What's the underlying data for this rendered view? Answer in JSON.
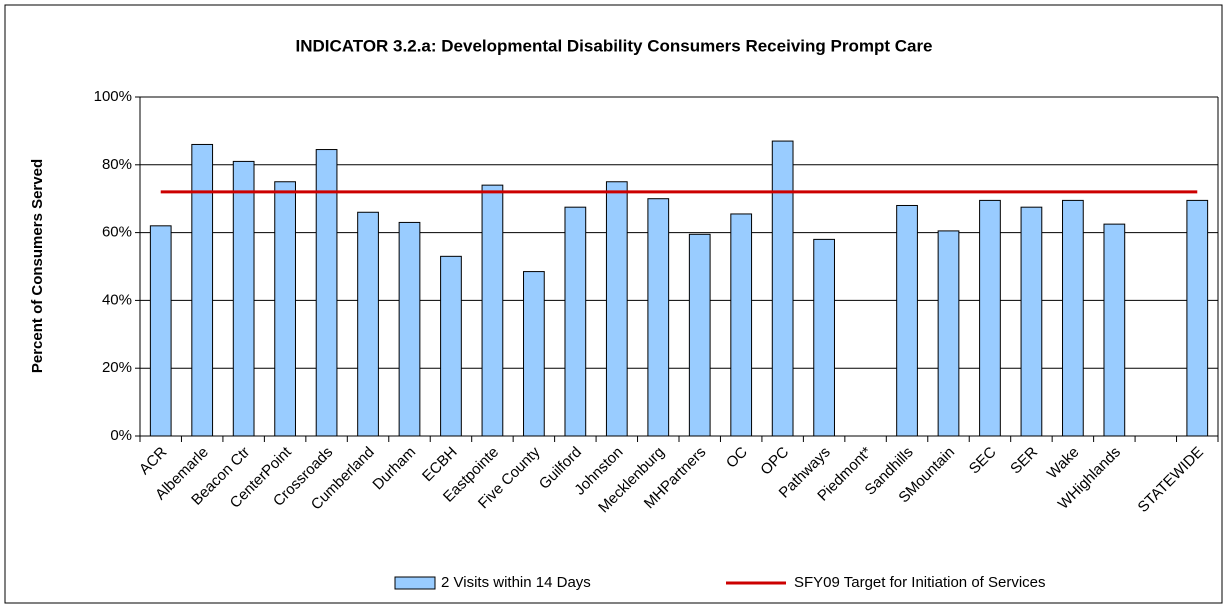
{
  "chart_data": {
    "type": "bar",
    "title": "INDICATOR 3.2.a: Developmental Disability Consumers Receiving Prompt Care",
    "y_label": "Percent of Consumers Served",
    "categories": [
      "ACR",
      "Albemarle",
      "Beacon Ctr",
      "CenterPoint",
      "Crossroads",
      "Cumberland",
      "Durham",
      "ECBH",
      "Eastpointe",
      "Five County",
      "Guilford",
      "Johnston",
      "Mecklenburg",
      "MHPartners",
      "OC",
      "OPC",
      "Pathways",
      "Piedmont*",
      "Sandhills",
      "SMountain",
      "SEC",
      "SER",
      "Wake",
      "WHighlands",
      null,
      "STATEWIDE"
    ],
    "series": [
      {
        "name": "2 Visits within 14 Days",
        "type": "bar",
        "color": "#99ccff",
        "values": [
          62,
          86,
          81,
          75,
          84.5,
          66,
          63,
          53,
          74,
          48.5,
          67.5,
          75,
          70,
          59.5,
          65.5,
          87,
          58,
          null,
          68,
          60.5,
          69.5,
          67.5,
          69.5,
          62.5,
          null,
          69.5
        ]
      },
      {
        "name": "SFY09 Target for Initiation of Services",
        "type": "line",
        "color": "#cc0000",
        "values": [
          72,
          72,
          72,
          72,
          72,
          72,
          72,
          72,
          72,
          72,
          72,
          72,
          72,
          72,
          72,
          72,
          72,
          72,
          72,
          72,
          72,
          72,
          72,
          72,
          72,
          72
        ]
      }
    ],
    "ylim": [
      0,
      100
    ],
    "yticks": [
      {
        "value": 0,
        "label": "0%"
      },
      {
        "value": 20,
        "label": "20%"
      },
      {
        "value": 40,
        "label": "40%"
      },
      {
        "value": 60,
        "label": "60%"
      },
      {
        "value": 80,
        "label": "80%"
      },
      {
        "value": 100,
        "label": "100%"
      }
    ],
    "grid": true,
    "legend": "bottom"
  }
}
